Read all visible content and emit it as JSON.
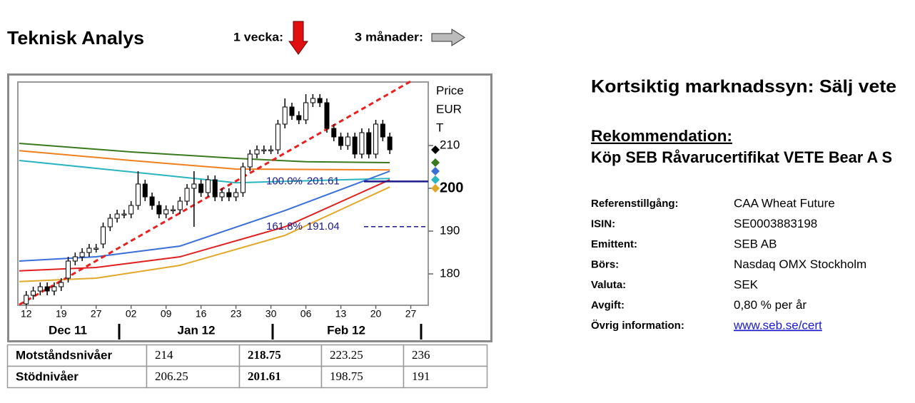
{
  "header": {
    "title": "Teknisk Analys",
    "week_label": "1 vecka:",
    "months_label": "3 månader:"
  },
  "chart_data": {
    "type": "candlestick",
    "y_label": [
      "Price",
      "EUR",
      "T"
    ],
    "xlim": [
      -1.2,
      57.5
    ],
    "xticks": [
      {
        "value": 0,
        "label": "12"
      },
      {
        "value": 5,
        "label": "19"
      },
      {
        "value": 10,
        "label": "27"
      },
      {
        "value": 15,
        "label": "02"
      },
      {
        "value": 20,
        "label": "09"
      },
      {
        "value": 25,
        "label": "16"
      },
      {
        "value": 30,
        "label": "23"
      },
      {
        "value": 35,
        "label": "30"
      },
      {
        "value": 40,
        "label": "06"
      },
      {
        "value": 45,
        "label": "13"
      },
      {
        "value": 50,
        "label": "20"
      },
      {
        "value": 55,
        "label": "27"
      }
    ],
    "months": [
      "Dec 11",
      "Jan 12",
      "Feb 12"
    ],
    "ylim": [
      172.5,
      225
    ],
    "yticks": [
      180,
      190,
      200,
      210
    ],
    "candles": {
      "x": [
        0,
        1,
        2,
        3,
        4,
        5,
        6,
        7,
        8,
        9,
        10,
        11,
        12,
        13,
        14,
        15,
        16,
        17,
        18,
        19,
        20,
        21,
        22,
        23,
        24,
        25,
        26,
        27,
        28,
        29,
        30,
        31,
        32,
        33,
        34,
        35,
        36,
        37,
        38,
        39,
        40,
        41,
        42,
        43,
        44,
        45,
        46,
        47,
        48,
        49,
        50,
        51,
        52
      ],
      "open": [
        173,
        175,
        176,
        177,
        176,
        177,
        179,
        183,
        184,
        185,
        186,
        187,
        191,
        193,
        194,
        194,
        196,
        201,
        198,
        196,
        194,
        195,
        195,
        197,
        200,
        201,
        199,
        202,
        198,
        199,
        198,
        199,
        205,
        208,
        209,
        209,
        209,
        215,
        219,
        217,
        216,
        220,
        221,
        220,
        214,
        212,
        210,
        212,
        208,
        213,
        208,
        215,
        212
      ],
      "high": [
        176,
        177,
        178,
        178,
        178,
        179,
        184,
        185,
        186,
        187,
        187,
        192,
        194,
        195,
        195,
        197,
        204,
        202,
        199,
        197,
        196,
        196,
        198,
        201,
        204,
        202,
        203,
        203,
        200,
        200,
        200,
        206,
        209,
        210,
        210,
        210,
        216,
        221,
        220,
        218,
        222,
        222,
        222,
        221,
        215,
        213,
        213,
        213,
        214,
        214,
        216,
        216,
        213
      ],
      "low": [
        172,
        174,
        175,
        175,
        175,
        176,
        178,
        182,
        183,
        184,
        185,
        186,
        190,
        192,
        193,
        193,
        195,
        197,
        195,
        193,
        193,
        194,
        194,
        196,
        191,
        198,
        198,
        197,
        197,
        197,
        197,
        198,
        204,
        207,
        208,
        208,
        208,
        214,
        216,
        215,
        215,
        219,
        219,
        213,
        211,
        209,
        209,
        207,
        207,
        207,
        207,
        211,
        208
      ],
      "close": [
        175,
        176,
        177,
        176,
        177,
        178,
        183,
        184,
        185,
        186,
        186,
        191,
        193,
        194,
        194,
        196,
        201,
        198,
        196,
        194,
        195,
        195,
        197,
        200,
        201,
        199,
        202,
        198,
        199,
        198,
        199,
        205,
        208,
        209,
        209,
        209,
        215,
        219,
        217,
        216,
        220,
        221,
        220,
        214,
        212,
        210,
        212,
        208,
        213,
        208,
        215,
        212,
        209
      ]
    },
    "series": [
      {
        "color": "#3a7a1e",
        "x": [
          -1,
          15,
          30,
          40,
          52
        ],
        "values": [
          210.5,
          208.5,
          207,
          206.2,
          206
        ]
      },
      {
        "color": "#f07f1e",
        "x": [
          -1,
          15,
          30,
          52
        ],
        "values": [
          208.8,
          206.5,
          204.5,
          204.3
        ]
      },
      {
        "color": "#2ab4c0",
        "x": [
          -1,
          20,
          30,
          52
        ],
        "values": [
          206.5,
          203,
          201.3,
          202.3
        ]
      },
      {
        "color": "#3a6fd8",
        "x": [
          -1,
          10,
          22,
          37,
          52
        ],
        "values": [
          183,
          184,
          186.5,
          194.8,
          204
        ]
      },
      {
        "color": "#e02020",
        "x": [
          -1,
          10,
          22,
          37,
          52
        ],
        "values": [
          180.7,
          181.5,
          184,
          191,
          202
        ]
      },
      {
        "color": "#e0a828",
        "x": [
          -1,
          10,
          22,
          37,
          52
        ],
        "values": [
          178.2,
          179,
          182,
          189,
          200.3
        ]
      },
      {
        "color": "#e82020",
        "dashed": true,
        "x": [
          -1,
          55
        ],
        "values": [
          172.8,
          225
        ]
      }
    ],
    "fib_levels": [
      {
        "label": "100.0%",
        "value": 201.61,
        "color": "#1a1a8c",
        "dashed": false
      },
      {
        "label": "161.8%",
        "value": 191.04,
        "color": "#1a1a8c",
        "dashed": true
      }
    ],
    "markers": [
      {
        "color": "#000000",
        "value": 209
      },
      {
        "color": "#3a7a1e",
        "value": 206
      },
      {
        "color": "#3a6fd8",
        "value": 204
      },
      {
        "color": "#2ab4c0",
        "value": 202
      },
      {
        "color": "#e0a828",
        "value": 200
      }
    ]
  },
  "table": {
    "rows": [
      [
        "Motståndsnivåer",
        214,
        218.75,
        223.25,
        236
      ],
      [
        "Stödnivåer",
        206.25,
        201.61,
        198.75,
        191
      ]
    ]
  },
  "info": {
    "title": "Kortsiktig marknadssyn: Sälj vete",
    "recommendation_label": "Rekommendation:",
    "recommendation": "Köp SEB Råvarucertifikat VETE Bear A S",
    "rows": [
      [
        "Referenstillgång:",
        "CAA Wheat Future"
      ],
      [
        "ISIN:",
        "SE0003883198"
      ],
      [
        "Emittent:",
        "SEB AB"
      ],
      [
        "Börs:",
        "Nasdaq OMX Stockholm"
      ],
      [
        "Valuta:",
        "SEK"
      ],
      [
        "Avgift:",
        "0,80 % per år"
      ],
      [
        "Övrig information:",
        "www.seb.se/cert"
      ]
    ]
  }
}
